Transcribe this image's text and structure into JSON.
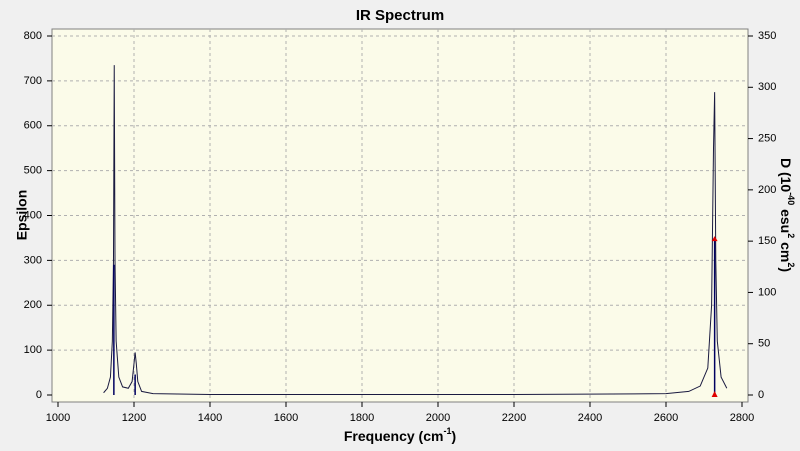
{
  "chart_data": {
    "type": "spectrum",
    "title": "IR Spectrum",
    "xlabel_parts": [
      "Frequency (cm",
      "-1",
      ")"
    ],
    "ylabel": "Epsilon",
    "y2label_parts": [
      "D (10",
      "-40",
      " esu",
      "2",
      " cm",
      "2",
      ")"
    ],
    "xlim": [
      1000,
      2800
    ],
    "xticks": [
      1000,
      1200,
      1400,
      1600,
      1800,
      2000,
      2200,
      2400,
      2600,
      2800
    ],
    "ylim": [
      0,
      800
    ],
    "yticks": [
      0,
      100,
      200,
      300,
      400,
      500,
      600,
      700,
      800
    ],
    "y2lim": [
      0,
      350
    ],
    "y2ticks": [
      0,
      50,
      100,
      150,
      200,
      250,
      300,
      350
    ],
    "grid": true,
    "series": [
      {
        "kind": "line",
        "color": "#1a1a40",
        "x": [
          1120,
          1130,
          1138,
          1143,
          1146,
          1148,
          1150,
          1153,
          1160,
          1170,
          1185,
          1195,
          1200,
          1203,
          1206,
          1210,
          1220,
          1250,
          1400,
          1800,
          2200,
          2600,
          2660,
          2690,
          2710,
          2720,
          2725,
          2728,
          2731,
          2735,
          2745,
          2760
        ],
        "values": [
          5,
          15,
          40,
          120,
          300,
          735,
          300,
          120,
          40,
          18,
          15,
          30,
          70,
          95,
          70,
          30,
          8,
          3,
          1,
          1,
          1,
          3,
          8,
          20,
          60,
          200,
          550,
          675,
          300,
          120,
          40,
          15
        ]
      },
      {
        "kind": "sticks",
        "axis": "y2",
        "color": "#000060",
        "x": [
          1147,
          1203,
          2728
        ],
        "values": [
          127,
          20,
          152
        ]
      }
    ],
    "highlight": {
      "x": 2728,
      "y2": 152,
      "color": "#e00000"
    }
  }
}
